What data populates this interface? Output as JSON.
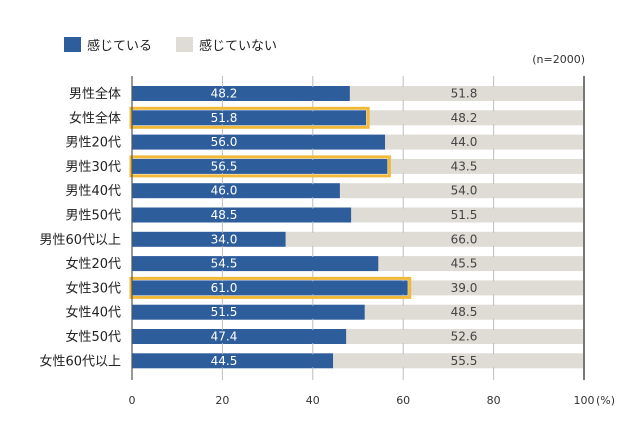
{
  "chart_data": {
    "type": "bar",
    "orientation": "horizontal",
    "stacked": true,
    "title": "",
    "note": "(n=2000)",
    "xlabel": "",
    "ylabel": "",
    "x_unit": "(%)",
    "xlim": [
      0,
      100
    ],
    "xticks": [
      0,
      20,
      40,
      60,
      80,
      100
    ],
    "grid": true,
    "legend_position": "top-left",
    "categories": [
      "男性全体",
      "女性全体",
      "男性20代",
      "男性30代",
      "男性40代",
      "男性50代",
      "男性60代以上",
      "女性20代",
      "女性30代",
      "女性40代",
      "女性50代",
      "女性60代以上"
    ],
    "series": [
      {
        "name": "感じている",
        "color": "#2e5d9c",
        "label_color": "#ffffff",
        "values": [
          48.2,
          51.8,
          56.0,
          56.5,
          46.0,
          48.5,
          34.0,
          54.5,
          61.0,
          51.5,
          47.4,
          44.5
        ]
      },
      {
        "name": "感じていない",
        "color": "#dedcd4",
        "label_color": "#444444",
        "values": [
          51.8,
          48.2,
          44.0,
          43.5,
          54.0,
          51.5,
          66.0,
          45.5,
          39.0,
          48.5,
          52.6,
          55.5
        ]
      }
    ],
    "highlighted_categories": [
      "女性全体",
      "男性30代",
      "女性30代"
    ],
    "highlight_color": "#f0b93a"
  }
}
